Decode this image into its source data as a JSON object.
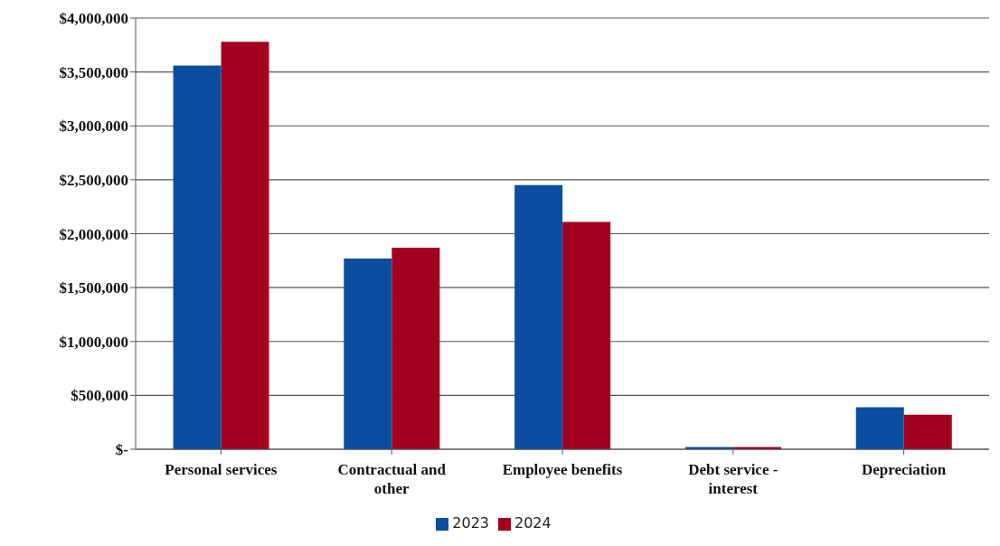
{
  "chart_data": {
    "type": "bar",
    "categories": [
      "Personal services",
      "Contractual and other",
      "Employee benefits",
      "Debt service - interest",
      "Depreciation"
    ],
    "series": [
      {
        "name": "2023",
        "color": "#0a4ea0",
        "values": [
          3560000,
          1770000,
          2450000,
          20000,
          390000
        ]
      },
      {
        "name": "2024",
        "color": "#a0001e",
        "values": [
          3780000,
          1870000,
          2110000,
          20000,
          320000
        ]
      }
    ],
    "ylim": [
      0,
      4000000
    ],
    "yticks": [
      {
        "value": 0,
        "label": "$-"
      },
      {
        "value": 500000,
        "label": "$500,000"
      },
      {
        "value": 1000000,
        "label": "$1,000,000"
      },
      {
        "value": 1500000,
        "label": "$1,500,000"
      },
      {
        "value": 2000000,
        "label": "$2,000,000"
      },
      {
        "value": 2500000,
        "label": "$2,500,000"
      },
      {
        "value": 3000000,
        "label": "$3,000,000"
      },
      {
        "value": 3500000,
        "label": "$3,500,000"
      },
      {
        "value": 4000000,
        "label": "$4,000,000"
      }
    ],
    "grid": "y",
    "legend": "bottom"
  }
}
